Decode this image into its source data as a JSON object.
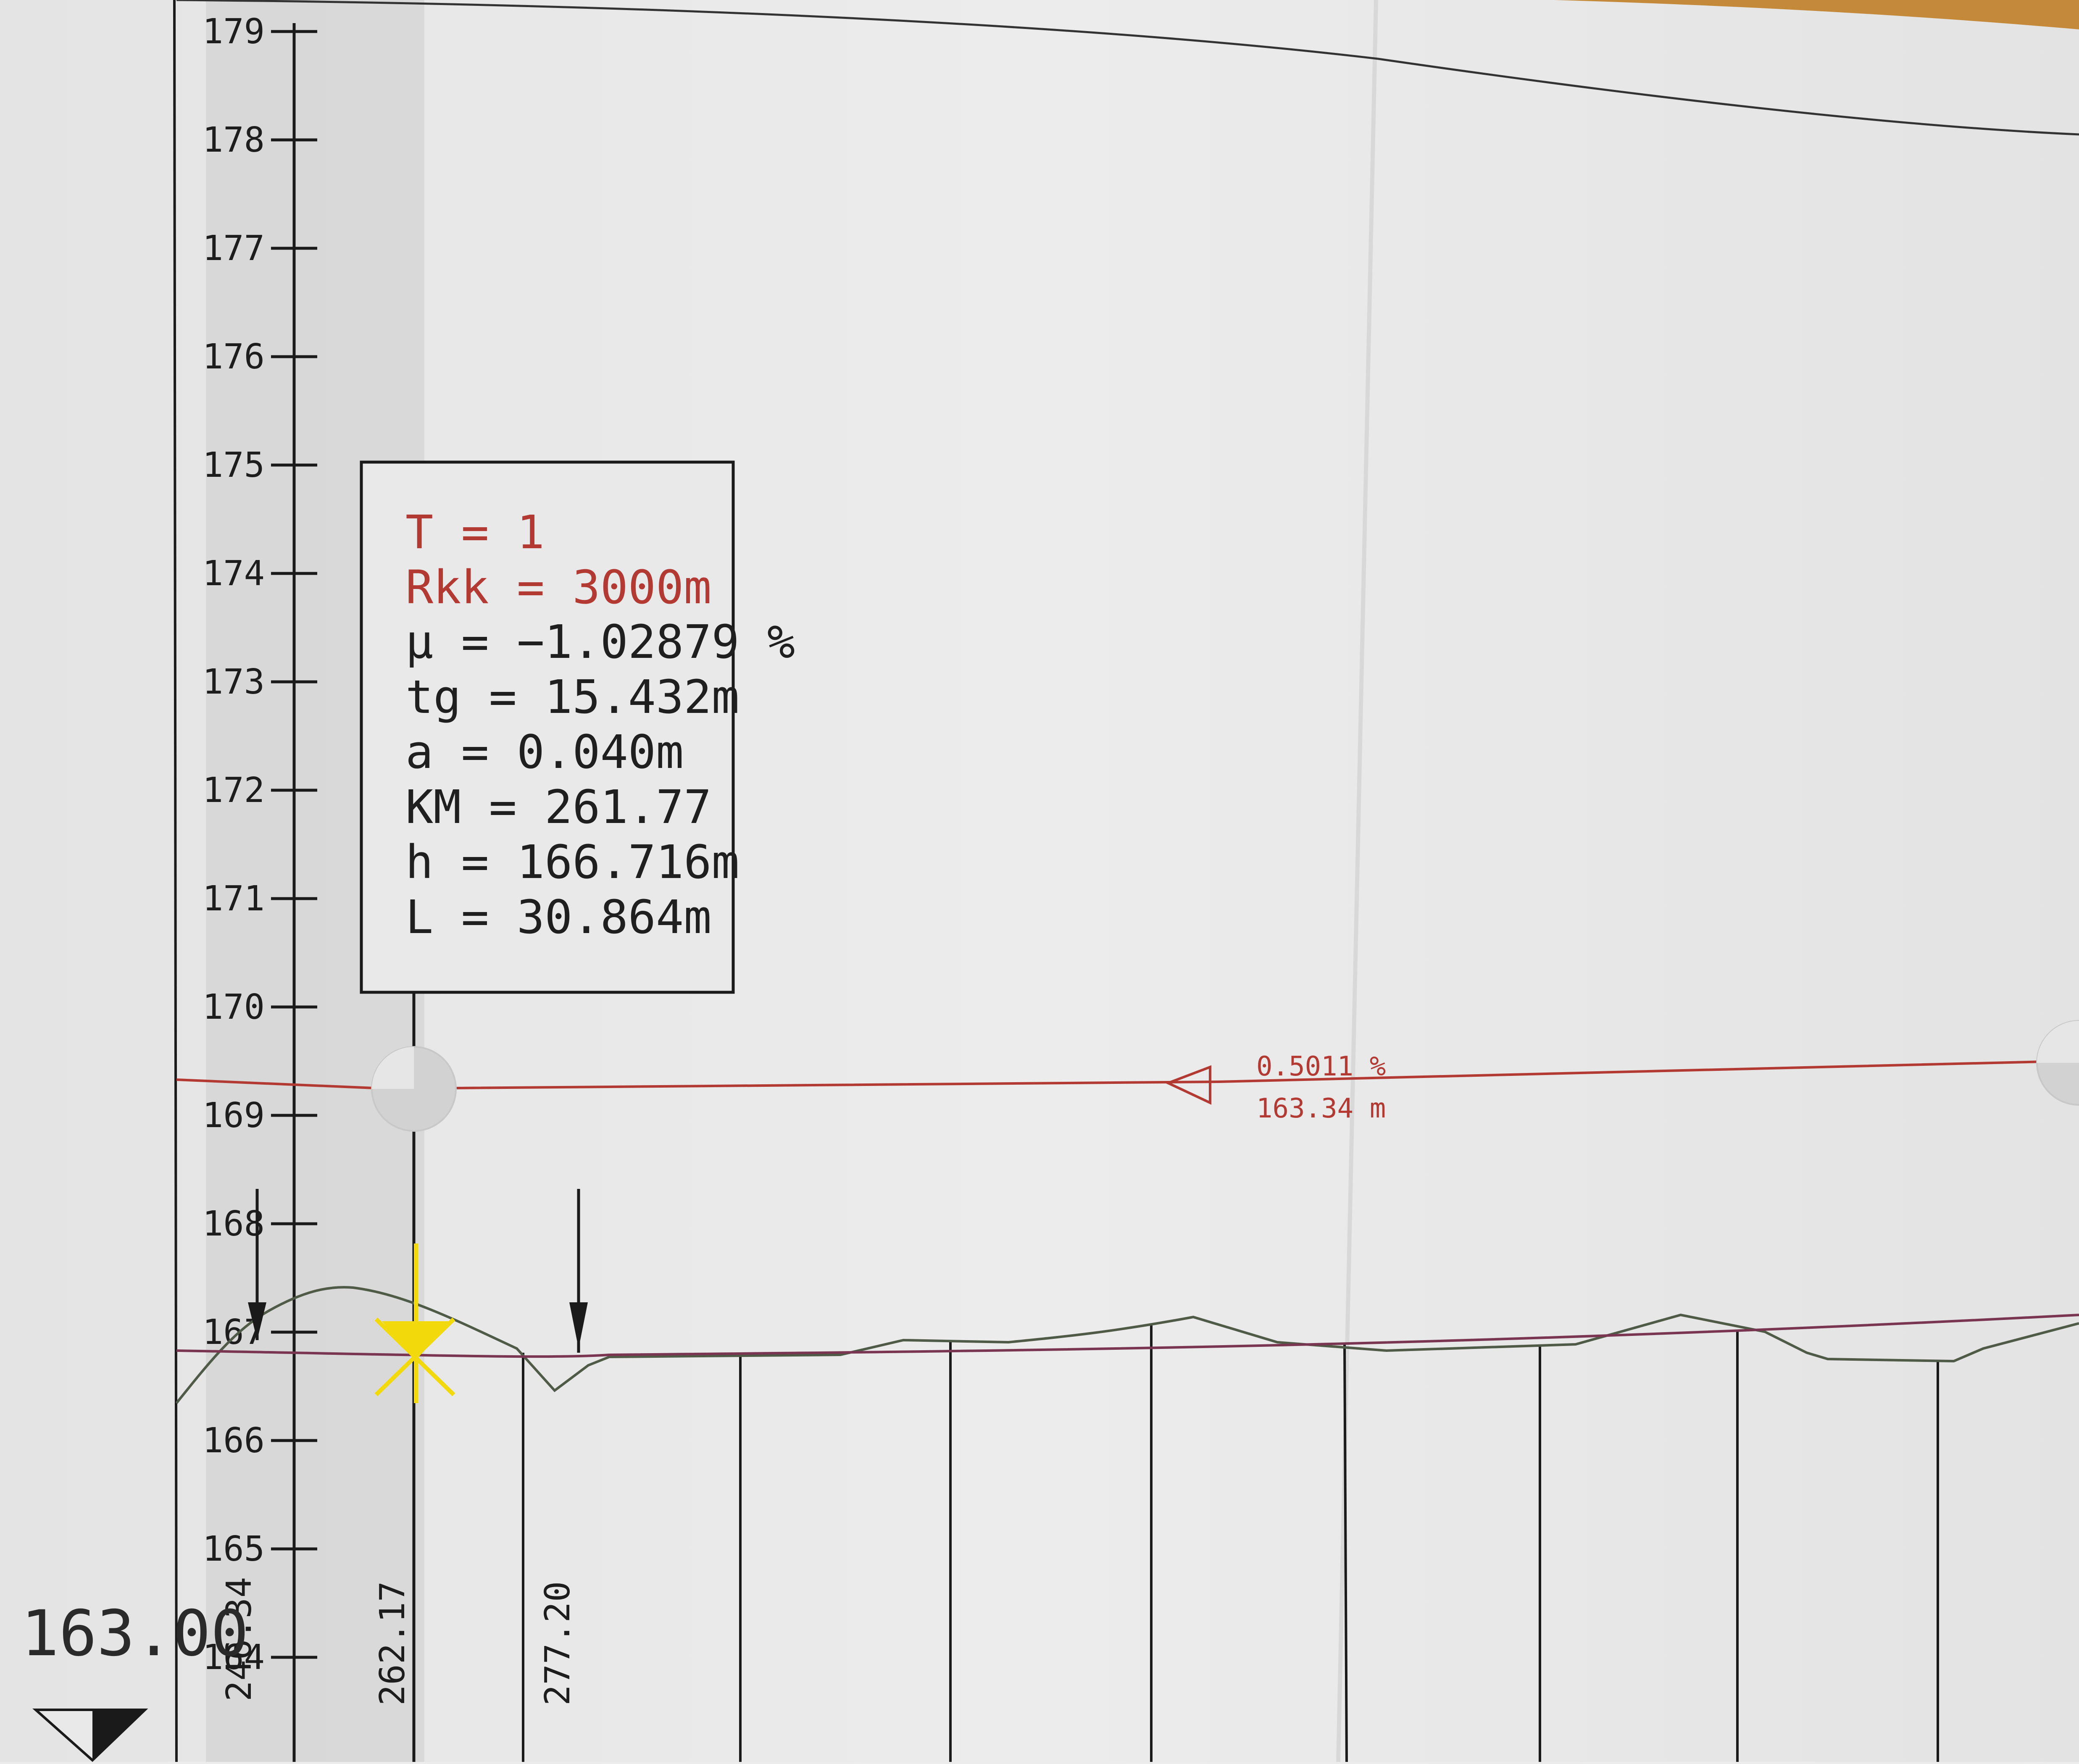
{
  "elevation_axis": {
    "labels": [
      "179",
      "178",
      "177",
      "176",
      "175",
      "174",
      "173",
      "172",
      "171",
      "170",
      "169",
      "168",
      "167",
      "166",
      "165",
      "164"
    ]
  },
  "curve_info": {
    "lines": [
      {
        "text": "T = 1",
        "color": "#b23a33"
      },
      {
        "text": "Rkk = 3000m",
        "color": "#b23a33"
      },
      {
        "text": "μ = −1.02879 %",
        "color": "#1f1f1f"
      },
      {
        "text": "tg = 15.432m",
        "color": "#1f1f1f"
      },
      {
        "text": "a = 0.040m",
        "color": "#1f1f1f"
      },
      {
        "text": "KM = 261.77",
        "color": "#1f1f1f"
      },
      {
        "text": "h = 166.716m",
        "color": "#1f1f1f"
      },
      {
        "text": "L = 30.864m",
        "color": "#1f1f1f"
      }
    ]
  },
  "grade_label": {
    "grade": "0.5011 %",
    "length": "163.34 m"
  },
  "datum": {
    "value": "163.00"
  },
  "stations": [
    {
      "label": "246.34"
    },
    {
      "label": "262.17"
    },
    {
      "label": "277.20"
    }
  ],
  "colors": {
    "paper": "#e7e7e7",
    "ink": "#1a1a1a",
    "design_line": "#b23a33",
    "terrain": "#4f5a47",
    "ground_line": "#7a3550",
    "highlight": "#f2d90c",
    "wood": "#c48a3a"
  }
}
